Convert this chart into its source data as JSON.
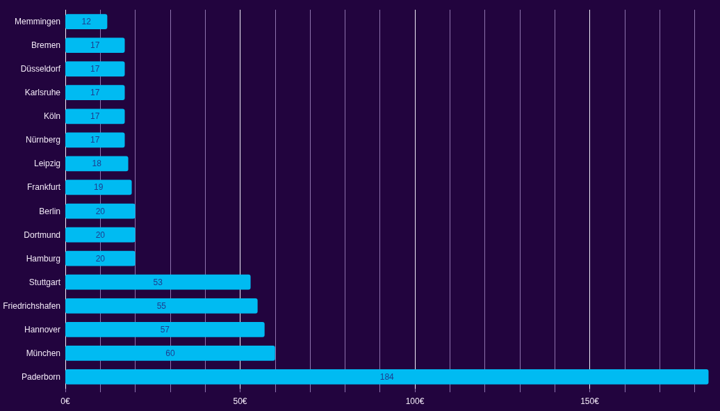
{
  "chart_data": {
    "type": "bar",
    "orientation": "horizontal",
    "categories": [
      "Memmingen",
      "Bremen",
      "Düsseldorf",
      "Karlsruhe",
      "Köln",
      "Nürnberg",
      "Leipzig",
      "Frankfurt",
      "Berlin",
      "Dortmund",
      "Hamburg",
      "Stuttgart",
      "Friedrichshafen",
      "Hannover",
      "München",
      "Paderborn"
    ],
    "values": [
      12,
      17,
      17,
      17,
      17,
      17,
      18,
      19,
      20,
      20,
      20,
      53,
      55,
      57,
      60,
      184
    ],
    "color": "#00bbf2",
    "xlim": [
      0,
      184
    ],
    "xticks": [
      {
        "value": 0,
        "label": "0€"
      },
      {
        "value": 10,
        "label": null
      },
      {
        "value": 20,
        "label": null
      },
      {
        "value": 30,
        "label": null
      },
      {
        "value": 40,
        "label": null
      },
      {
        "value": 50,
        "label": "50€"
      },
      {
        "value": 60,
        "label": null
      },
      {
        "value": 70,
        "label": null
      },
      {
        "value": 80,
        "label": null
      },
      {
        "value": 90,
        "label": null
      },
      {
        "value": 100,
        "label": "100€"
      },
      {
        "value": 110,
        "label": null
      },
      {
        "value": 120,
        "label": null
      },
      {
        "value": 130,
        "label": null
      },
      {
        "value": 140,
        "label": null
      },
      {
        "value": 150,
        "label": "150€"
      },
      {
        "value": 160,
        "label": null
      },
      {
        "value": 170,
        "label": null
      },
      {
        "value": 180,
        "label": null
      }
    ],
    "grid": "x",
    "data_labels": true
  }
}
